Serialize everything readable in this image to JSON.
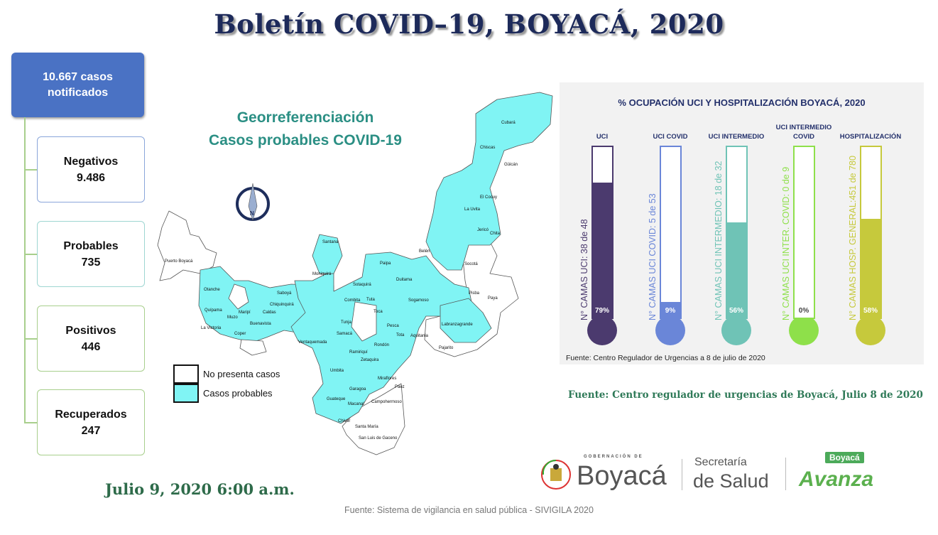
{
  "title": "Boletín COVID–19, BOYACÁ, 2020",
  "summary": {
    "total": "10.667 casos notificados",
    "stats": [
      {
        "label": "Negativos",
        "value": "9.486",
        "color": "#8aa6da"
      },
      {
        "label": "Probables",
        "value": "735",
        "color": "#9ed6d2"
      },
      {
        "label": "Positivos",
        "value": "446",
        "color": "#a8cf8c"
      },
      {
        "label": "Recuperados",
        "value": "247",
        "color": "#a8cf8c"
      }
    ]
  },
  "map": {
    "title_line1": "Georreferenciación",
    "title_line2": "Casos probables COVID-19",
    "legend": [
      {
        "label": "No presenta casos",
        "color": "#ffffff"
      },
      {
        "label": "Casos probables",
        "color": "#80f4f4"
      }
    ],
    "labels": [
      "Puerto Boyacá",
      "Cubará",
      "Chiscas",
      "Güicán",
      "El Cocuy",
      "La Uvita",
      "Jericó",
      "Chita",
      "Socotá",
      "Pisba",
      "Paya",
      "Labranzagrande",
      "Aquitania",
      "Pajarito",
      "Tunja",
      "Sogamoso",
      "Paipa",
      "Duitama",
      "Sotaquirá",
      "Combita",
      "Tuta",
      "Toca",
      "Otanche",
      "Muzo",
      "Maripí",
      "Caldas",
      "Saboyá",
      "Chiquinquirá",
      "Ventaquemada",
      "Umbita",
      "Miraflores",
      "Páez",
      "Campohermoso",
      "Macanal",
      "Santa María",
      "San Luis de Gaceno",
      "Chivor",
      "Zetaquira",
      "Ramiriquí",
      "Samacá",
      "Moniquirá",
      "Santana",
      "Belén",
      "Pesca",
      "Tota",
      "Rondón",
      "Garagoa",
      "Guateque",
      "Coper",
      "Buenavista",
      "La Victoria",
      "Quípama"
    ]
  },
  "occupancy": {
    "title": "% OCUPACIÓN UCI Y HOSPITALIZACIÓN BOYACÁ, 2020",
    "source": "Fuente: Centro Regulador de Urgencias a 8 de julio de 2020",
    "gauges": [
      {
        "name": "UCI",
        "pct": 79,
        "pct_label": "79%",
        "caption": "N° CAMAS UCI: 38 de 48",
        "color": "#4b3a6e"
      },
      {
        "name": "UCI COVID",
        "pct": 9,
        "pct_label": "9%",
        "caption": "N° CAMAS UCI COVID: 5 de 53",
        "color": "#6a86d8"
      },
      {
        "name": "UCI INTERMEDIO",
        "pct": 56,
        "pct_label": "56%",
        "caption": "N° CAMAS UCI INTERMEDIO: 18 de 32",
        "color": "#6fc3b6"
      },
      {
        "name": "UCI INTERMEDIO COVID",
        "pct": 0,
        "pct_label": "0%",
        "caption": "N° CAMAS UCI INTER. COVID: 0 de 9",
        "color": "#8ee04a"
      },
      {
        "name": "HOSPITALIZACIÓN",
        "pct": 58,
        "pct_label": "58%",
        "caption": "N° CAMAS HOSP. GENERAL:451 de 780",
        "color": "#c6c93c"
      }
    ]
  },
  "source_urgencias": "Fuente: Centro regulador de urgencias de Boyacá, Julio 8 de 2020",
  "date": "Julio 9, 2020 6:00 a.m.",
  "footer": "Fuente: Sistema de vigilancia en salud pública - SIVIGILA 2020",
  "logos": {
    "gob_small": "GOBERNACIÓN DE",
    "gob_big": "Boyacá",
    "sec1": "Secretaría",
    "sec2": "de Salud",
    "avanza1": "Boyacá",
    "avanza2": "Avanza"
  }
}
